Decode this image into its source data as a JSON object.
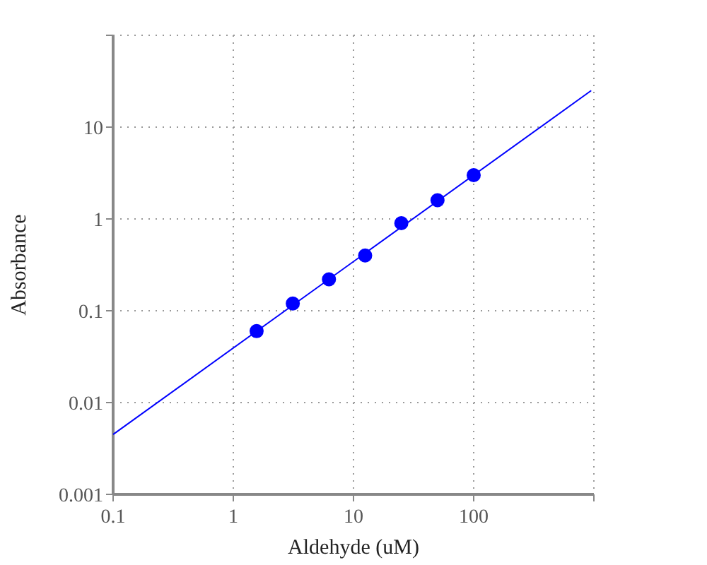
{
  "chart_data": {
    "type": "scatter",
    "xlabel": "Aldehyde (uM)",
    "ylabel": "Absorbance",
    "log": "xy",
    "grid": true,
    "xlim": [
      0.1,
      1000
    ],
    "ylim": [
      0.001,
      100
    ],
    "xticks": [
      0.1,
      1,
      10,
      100,
      {
        "value": 1000,
        "label": null
      }
    ],
    "yticks": [
      0.001,
      0.01,
      0.1,
      1,
      10,
      {
        "value": 100,
        "label": null
      }
    ],
    "series": [
      {
        "color": "#0000ff",
        "marker": "circle",
        "x": [
          1.5625,
          3.125,
          6.25,
          12.5,
          25,
          50,
          100
        ],
        "values": [
          0.06,
          0.12,
          0.22,
          0.4,
          0.9,
          1.6,
          3.0
        ]
      },
      {
        "type": "line",
        "color": "#0000ff",
        "marker": "none",
        "line_style": "solid",
        "x": [
          0.1,
          950
        ],
        "values": [
          0.0045,
          25
        ]
      }
    ]
  }
}
